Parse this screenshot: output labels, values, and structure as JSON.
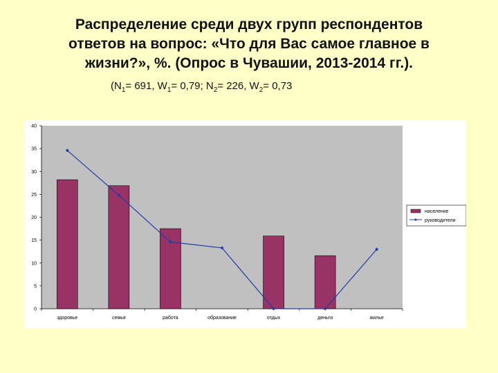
{
  "header": {
    "title_line1": "Распределение среди двух групп респондентов",
    "title_line2": "ответов  на вопрос:  «Что для Вас самое  главное в",
    "title_line3": "жизни?», %. (Опрос в Чувашии, 2013-2014 гг.).",
    "subtitle": {
      "p1": "(N",
      "s1": "1",
      "p2": "= 691, W",
      "s2": "1",
      "p3": "= 0,79;  N",
      "s3": "2",
      "p4": "= 226,  W",
      "s4": "2",
      "p5": "= 0,73"
    }
  },
  "colors": {
    "background": "#FFFFC8",
    "bar": "#993366",
    "line": "#1F3BA8",
    "plot_bg": "#C0C0C0"
  },
  "chart_data": {
    "type": "bar",
    "categories": [
      "здоровье",
      "семья",
      "работа",
      "образование",
      "отдых",
      "деньги",
      "жилье"
    ],
    "ylim": [
      0,
      40
    ],
    "yticks": [
      "0",
      "5",
      "10",
      "15",
      "20",
      "25",
      "30",
      "35",
      "40"
    ],
    "grid": false,
    "legend_position": "right",
    "series": [
      {
        "name": "население",
        "kind": "bar",
        "values": [
          28.2,
          26.9,
          17.5,
          null,
          15.9,
          11.6,
          null
        ]
      },
      {
        "name": "руководители",
        "kind": "line",
        "values": [
          34.6,
          24.8,
          14.6,
          13.3,
          0,
          0,
          13
        ]
      }
    ]
  }
}
